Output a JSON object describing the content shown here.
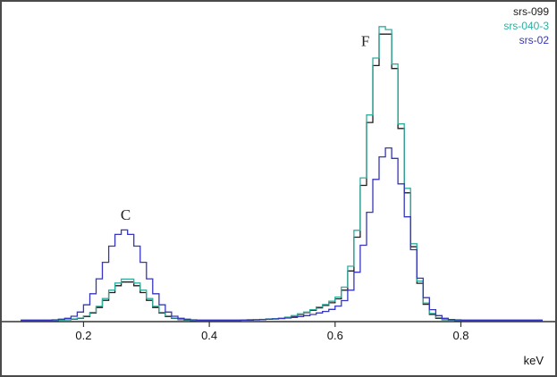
{
  "axis": {
    "unit_label": "keV"
  },
  "chart_data": {
    "type": "line",
    "style": "step-histogram",
    "title": "",
    "xlabel": "keV",
    "ylabel": "",
    "grid": false,
    "legend_position": "top-right",
    "x_start": 0.1,
    "bin_width": 0.01,
    "x_range": [
      0.07,
      0.95
    ],
    "y_range": [
      0,
      105
    ],
    "x_ticks": [
      0.2,
      0.4,
      0.6,
      0.8
    ],
    "x_tick_labels": [
      "0.2",
      "0.4",
      "0.6",
      "0.8"
    ],
    "annotations": [
      {
        "text": "C",
        "x": 0.267,
        "y": 34
      },
      {
        "text": "F",
        "x": 0.648,
        "y": 92
      }
    ],
    "series": [
      {
        "name": "srs-099",
        "color": "#1c1c1c",
        "values": [
          0.4,
          0.4,
          0.4,
          0.4,
          0.4,
          0.4,
          0.5,
          0.6,
          0.8,
          1.1,
          1.7,
          2.9,
          4.7,
          7.1,
          9.7,
          12.0,
          13.2,
          13.2,
          12.0,
          9.7,
          7.1,
          4.7,
          2.9,
          1.7,
          1.1,
          0.7,
          0.5,
          0.4,
          0.4,
          0.4,
          0.4,
          0.4,
          0.4,
          0.4,
          0.4,
          0.5,
          0.5,
          0.6,
          0.7,
          0.8,
          0.9,
          1.1,
          1.4,
          1.8,
          2.4,
          3.0,
          3.8,
          4.6,
          5.4,
          6.3,
          7.6,
          10.5,
          16.9,
          28.2,
          45.5,
          66.5,
          85.5,
          96.0,
          96.0,
          84.5,
          64.5,
          43.0,
          25.0,
          12.8,
          5.8,
          2.4,
          1.1,
          0.6,
          0.5,
          0.4,
          0.4,
          0.4,
          0.4,
          0.4,
          0.4,
          0.4,
          0.4,
          0.4,
          0.4,
          0.4,
          0.4,
          0.4,
          0.4
        ]
      },
      {
        "name": "srs-040-3",
        "color": "#2fae9f",
        "values": [
          0.45,
          0.45,
          0.45,
          0.45,
          0.45,
          0.45,
          0.5,
          0.6,
          0.9,
          1.2,
          1.9,
          3.1,
          5.1,
          7.7,
          10.5,
          12.9,
          14.2,
          14.2,
          12.9,
          10.5,
          7.7,
          5.1,
          3.1,
          1.9,
          1.2,
          0.8,
          0.6,
          0.5,
          0.45,
          0.45,
          0.45,
          0.45,
          0.45,
          0.45,
          0.45,
          0.55,
          0.6,
          0.65,
          0.75,
          0.9,
          1.0,
          1.2,
          1.5,
          2.0,
          2.6,
          3.2,
          4.0,
          4.9,
          5.7,
          6.8,
          8.2,
          11.5,
          18.5,
          30.5,
          48.0,
          69.0,
          88.0,
          98.5,
          97.5,
          86.0,
          66.0,
          44.5,
          26.0,
          13.5,
          6.2,
          2.7,
          1.3,
          0.7,
          0.55,
          0.5,
          0.45,
          0.45,
          0.45,
          0.45,
          0.45,
          0.45,
          0.45,
          0.45,
          0.45,
          0.45,
          0.45,
          0.45,
          0.45
        ]
      },
      {
        "name": "srs-02",
        "color": "#3535bd",
        "values": [
          0.5,
          0.5,
          0.5,
          0.5,
          0.5,
          0.6,
          0.8,
          1.1,
          1.8,
          3.2,
          5.6,
          9.3,
          14.3,
          19.8,
          25.2,
          29.1,
          30.6,
          29.1,
          25.2,
          19.8,
          14.3,
          9.3,
          5.6,
          3.2,
          1.8,
          1.1,
          0.8,
          0.6,
          0.5,
          0.5,
          0.5,
          0.5,
          0.5,
          0.5,
          0.5,
          0.5,
          0.6,
          0.6,
          0.7,
          0.8,
          0.9,
          1.0,
          1.2,
          1.4,
          1.7,
          2.0,
          2.4,
          2.9,
          3.4,
          4.1,
          5.2,
          7.0,
          10.5,
          16.5,
          25.5,
          36.5,
          47.5,
          55.0,
          58.0,
          54.5,
          46.0,
          35.0,
          24.0,
          14.5,
          8.0,
          4.0,
          2.0,
          1.1,
          0.7,
          0.6,
          0.5,
          0.5,
          0.5,
          0.5,
          0.5,
          0.5,
          0.5,
          0.5,
          0.5,
          0.5,
          0.5,
          0.5,
          0.5
        ]
      }
    ]
  }
}
